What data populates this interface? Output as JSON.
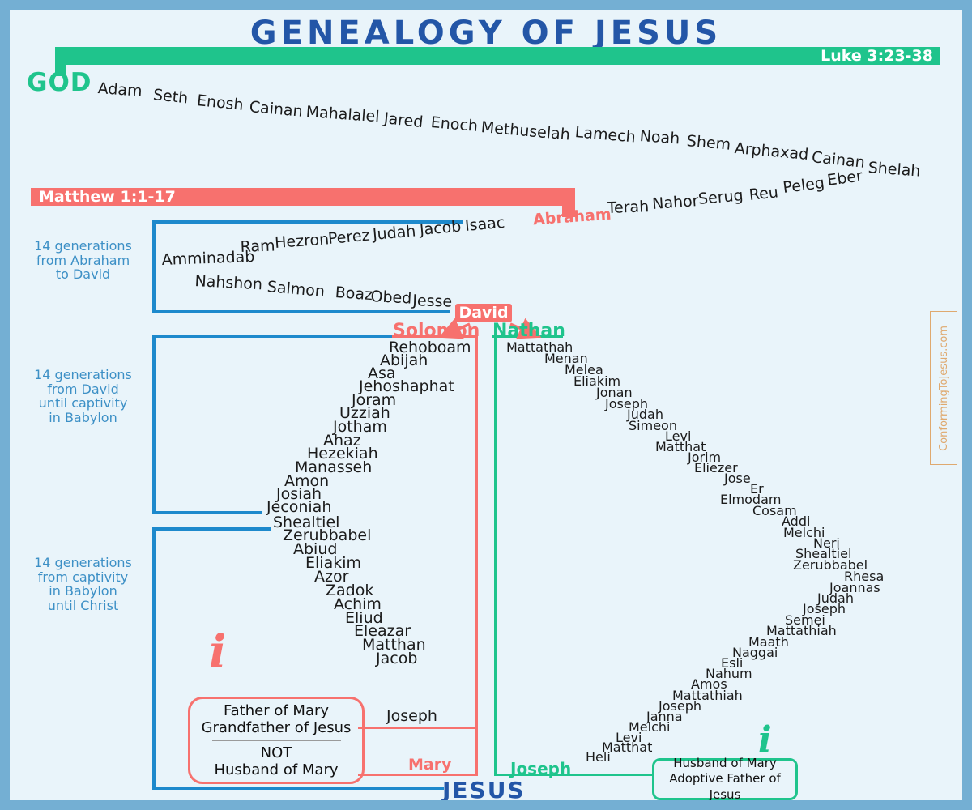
{
  "title": "GENEALOGY OF JESUS",
  "bars": {
    "luke_label": "Luke 3:23-38",
    "matthew_label": "Matthew 1:1-17"
  },
  "root": "GOD",
  "jesus": "JESUS",
  "key_people": {
    "abraham": "Abraham",
    "david": "David",
    "solomon": "Solomon",
    "nathan": "Nathan",
    "joseph_matthew": "Joseph",
    "mary": "Mary",
    "joseph_luke": "Joseph"
  },
  "generation_labels": {
    "first": [
      "14 generations",
      "from Abraham",
      "to David"
    ],
    "second": [
      "14 generations",
      "from David",
      "until captivity",
      "in Babylon"
    ],
    "third": [
      "14 generations",
      "from captivity",
      "in Babylon",
      "until Christ"
    ]
  },
  "info_boxes": {
    "red": {
      "icon": "i",
      "top_lines": [
        "Father of Mary",
        "Grandfather of Jesus"
      ],
      "bottom_lines": [
        "NOT",
        "Husband of Mary"
      ]
    },
    "green": {
      "icon": "i",
      "lines": [
        "Husband of Mary",
        "Adoptive Father of Jesus"
      ]
    }
  },
  "watermark": "ConformingToJesus.com",
  "colors": {
    "bg": "#e9f4fa",
    "frame": "#74afd3",
    "title-blue": "#2356a7",
    "green": "#1fc48c",
    "red": "#f7716e",
    "line-blue": "#1d89cc",
    "label-blue": "#3d90c6",
    "ink": "#1b1b1b",
    "watermark": "#dfa96f"
  },
  "names": {
    "luke_pre_abraham": [
      [
        "Adam",
        108,
        86,
        4
      ],
      [
        "Seth",
        176,
        94,
        6
      ],
      [
        "Enosh",
        230,
        101,
        6
      ],
      [
        "Cainan",
        295,
        109,
        5
      ],
      [
        "Mahalalel",
        365,
        115,
        4
      ],
      [
        "Jared",
        461,
        123,
        6
      ],
      [
        "Enoch",
        519,
        128,
        5
      ],
      [
        "Methuselah",
        581,
        134,
        5
      ],
      [
        "Lamech",
        697,
        140,
        5
      ],
      [
        "Noah",
        777,
        145,
        4
      ],
      [
        "Shem",
        835,
        151,
        5
      ],
      [
        "Arphaxad",
        894,
        160,
        5
      ],
      [
        "Cainan",
        989,
        171,
        6
      ],
      [
        "Shelah",
        1059,
        184,
        4
      ],
      [
        "Eber",
        1011,
        200,
        -8
      ],
      [
        "Peleg",
        956,
        209,
        -7
      ],
      [
        "Reu",
        914,
        218,
        -6
      ],
      [
        "Serug",
        851,
        223,
        -5
      ],
      [
        "Nahor",
        794,
        229,
        -4
      ],
      [
        "Terah",
        738,
        234,
        -2
      ]
    ],
    "matthew_abraham_to_david": [
      [
        "Isaac",
        563,
        256,
        -5
      ],
      [
        "Jacob",
        507,
        261,
        -5
      ],
      [
        "Judah",
        449,
        267,
        -5
      ],
      [
        "Perez",
        394,
        272,
        -5
      ],
      [
        "Hezron",
        328,
        277,
        -4
      ],
      [
        "Ram",
        285,
        282,
        -2
      ],
      [
        "Amminadab",
        188,
        298,
        -2
      ],
      [
        "Nahshon",
        228,
        324,
        3
      ],
      [
        "Salmon",
        317,
        331,
        5
      ],
      [
        "Boaz",
        401,
        338,
        4
      ],
      [
        "Obed",
        445,
        343,
        3
      ],
      [
        "Jesse",
        497,
        348,
        2
      ]
    ],
    "matthew_solomon_line": [
      [
        "Rehoboam",
        468,
        406,
        0
      ],
      [
        "Abijah",
        457,
        422,
        0
      ],
      [
        "Asa",
        442,
        438,
        0
      ],
      [
        "Jehoshaphat",
        431,
        454,
        0
      ],
      [
        "Joram",
        422,
        471,
        0
      ],
      [
        "Uzziah",
        407,
        487,
        0
      ],
      [
        "Jotham",
        399,
        504,
        0
      ],
      [
        "Ahaz",
        387,
        521,
        0
      ],
      [
        "Hezekiah",
        367,
        537,
        0
      ],
      [
        "Manasseh",
        352,
        554,
        0
      ],
      [
        "Amon",
        339,
        571,
        0
      ],
      [
        "Josiah",
        329,
        587,
        0
      ],
      [
        "Jeconiah",
        317,
        603,
        0
      ],
      [
        "Shealtiel",
        325,
        622,
        0
      ],
      [
        "Zerubbabel",
        337,
        638,
        0
      ],
      [
        "Abiud",
        350,
        655,
        0
      ],
      [
        "Eliakim",
        365,
        672,
        0
      ],
      [
        "Azor",
        376,
        689,
        0
      ],
      [
        "Zadok",
        390,
        706,
        0
      ],
      [
        "Achim",
        400,
        723,
        0
      ],
      [
        "Eliud",
        414,
        740,
        0
      ],
      [
        "Eleazar",
        425,
        756,
        0
      ],
      [
        "Matthan",
        435,
        773,
        0
      ],
      [
        "Jacob",
        452,
        790,
        0
      ]
    ],
    "luke_nathan_line": [
      [
        "Mattathah",
        613,
        407,
        0
      ],
      [
        "Menan",
        660,
        421,
        0
      ],
      [
        "Melea",
        685,
        435,
        0
      ],
      [
        "Eliakim",
        696,
        449,
        0
      ],
      [
        "Jonan",
        724,
        463,
        0
      ],
      [
        "Joseph",
        735,
        477,
        0
      ],
      [
        "Judah",
        762,
        490,
        0
      ],
      [
        "Simeon",
        764,
        504,
        0
      ],
      [
        "Levi",
        809,
        517,
        0
      ],
      [
        "Matthat",
        797,
        530,
        0
      ],
      [
        "Jorim",
        837,
        543,
        0
      ],
      [
        "Eliezer",
        845,
        556,
        0
      ],
      [
        "Jose",
        882,
        569,
        0
      ],
      [
        "Er",
        914,
        582,
        0
      ],
      [
        "Elmodam",
        877,
        595,
        0
      ],
      [
        "Cosam",
        917,
        609,
        0
      ],
      [
        "Addi",
        953,
        622,
        0
      ],
      [
        "Melchi",
        955,
        636,
        0
      ],
      [
        "Neri",
        992,
        649,
        0
      ],
      [
        "Shealtiel",
        970,
        662,
        0
      ],
      [
        "Zerubbabel",
        967,
        676,
        0
      ],
      [
        "Rhesa",
        1030,
        690,
        0
      ],
      [
        "Joannas",
        1012,
        704,
        0
      ],
      [
        "Judah",
        997,
        717,
        0
      ],
      [
        "Joseph",
        979,
        730,
        0
      ],
      [
        "Semei",
        957,
        744,
        0
      ],
      [
        "Mattathiah",
        934,
        757,
        0
      ],
      [
        "Maath",
        912,
        771,
        0
      ],
      [
        "Naggai",
        892,
        784,
        0
      ],
      [
        "Esli",
        878,
        797,
        0
      ],
      [
        "Nahum",
        859,
        810,
        0
      ],
      [
        "Amos",
        841,
        823,
        0
      ],
      [
        "Mattathiah",
        818,
        837,
        0
      ],
      [
        "Joseph",
        801,
        850,
        0
      ],
      [
        "Janna",
        786,
        863,
        0
      ],
      [
        "Melchi",
        764,
        876,
        0
      ],
      [
        "Levi",
        748,
        889,
        0
      ],
      [
        "Matthat",
        731,
        901,
        0
      ],
      [
        "Heli",
        711,
        913,
        0
      ]
    ]
  }
}
